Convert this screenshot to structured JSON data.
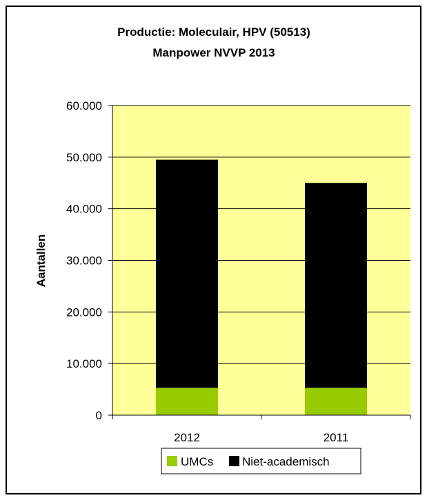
{
  "chart_data": {
    "type": "bar",
    "stacked": true,
    "title": "Productie: Moleculair, HPV (50513)",
    "subtitle": "Manpower NVVP 2013",
    "xlabel": "",
    "ylabel": "Aantallen",
    "categories": [
      "2012",
      "2011"
    ],
    "series": [
      {
        "name": "UMCs",
        "values": [
          5300,
          5300
        ],
        "color": "#99cc00"
      },
      {
        "name": "Niet-academisch",
        "values": [
          44200,
          39700
        ],
        "color": "#000000"
      }
    ],
    "ylim": [
      0,
      60000
    ],
    "yticks": [
      0,
      10000,
      20000,
      30000,
      40000,
      50000,
      60000
    ],
    "ytick_labels": [
      "0",
      "10.000",
      "20.000",
      "30.000",
      "40.000",
      "50.000",
      "60.000"
    ],
    "grid": true,
    "plot_background": "#ffff99",
    "legend_position": "bottom"
  }
}
